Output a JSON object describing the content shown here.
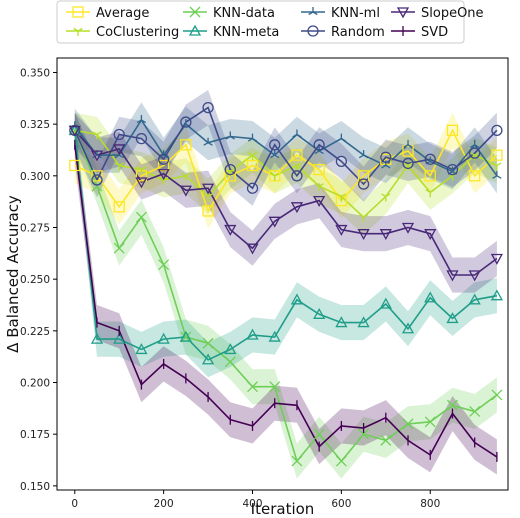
{
  "chart_data": {
    "type": "line",
    "xlabel": "Iteration",
    "ylabel": "Δ Balanced Accuracy",
    "xlim": [
      -40,
      975
    ],
    "ylim": [
      0.148,
      0.357
    ],
    "xticks": [
      0,
      200,
      400,
      600,
      800
    ],
    "xtick_labels": [
      "0",
      "200",
      "400",
      "600",
      "800"
    ],
    "yticks": [
      0.15,
      0.175,
      0.2,
      0.225,
      0.25,
      0.275,
      0.3,
      0.325,
      0.35
    ],
    "ytick_labels": [
      "0.150",
      "0.175",
      "0.200",
      "0.225",
      "0.250",
      "0.275",
      "0.300",
      "0.325",
      "0.350"
    ],
    "grid": false,
    "legend_position": "top",
    "x": [
      0,
      50,
      100,
      150,
      200,
      250,
      300,
      350,
      400,
      450,
      500,
      550,
      600,
      650,
      700,
      750,
      800,
      850,
      900,
      950
    ],
    "series": [
      {
        "name": "Average",
        "color": "#fde725",
        "marker": "square",
        "values": [
          0.305,
          0.3,
          0.285,
          0.3,
          0.305,
          0.315,
          0.283,
          0.3,
          0.305,
          0.3,
          0.31,
          0.303,
          0.288,
          0.3,
          0.308,
          0.312,
          0.3,
          0.322,
          0.3,
          0.31
        ]
      },
      {
        "name": "CoClustering",
        "color": "#b5de2b",
        "marker": "tri_down",
        "values": [
          0.322,
          0.32,
          0.305,
          0.303,
          0.298,
          0.3,
          0.29,
          0.302,
          0.31,
          0.3,
          0.305,
          0.295,
          0.29,
          0.28,
          0.29,
          0.305,
          0.292,
          0.3,
          0.31,
          0.305
        ]
      },
      {
        "name": "KNN-data",
        "color": "#6ece58",
        "marker": "x",
        "values": [
          0.322,
          0.295,
          0.265,
          0.28,
          0.257,
          0.222,
          0.219,
          0.21,
          0.198,
          0.198,
          0.162,
          0.175,
          0.162,
          0.175,
          0.172,
          0.18,
          0.181,
          0.189,
          0.186,
          0.194
        ]
      },
      {
        "name": "KNN-meta",
        "color": "#1f9e89",
        "marker": "tri_up",
        "values": [
          0.322,
          0.221,
          0.221,
          0.216,
          0.221,
          0.222,
          0.211,
          0.216,
          0.223,
          0.222,
          0.24,
          0.233,
          0.229,
          0.229,
          0.238,
          0.226,
          0.241,
          0.231,
          0.24,
          0.242
        ]
      },
      {
        "name": "KNN-ml",
        "color": "#31688e",
        "marker": "tri",
        "values": [
          0.324,
          0.31,
          0.31,
          0.327,
          0.31,
          0.325,
          0.316,
          0.319,
          0.318,
          0.31,
          0.32,
          0.312,
          0.318,
          0.31,
          0.305,
          0.315,
          0.307,
          0.302,
          0.315,
          0.3
        ]
      },
      {
        "name": "Random",
        "color": "#3e4a89",
        "marker": "circle",
        "values": [
          0.322,
          0.298,
          0.32,
          0.318,
          0.308,
          0.326,
          0.333,
          0.303,
          0.294,
          0.315,
          0.3,
          0.315,
          0.307,
          0.296,
          0.309,
          0.306,
          0.308,
          0.303,
          0.311,
          0.322
        ]
      },
      {
        "name": "SlopeOne",
        "color": "#482878",
        "marker": "tri_down",
        "values": [
          0.322,
          0.31,
          0.313,
          0.297,
          0.301,
          0.293,
          0.294,
          0.274,
          0.265,
          0.278,
          0.285,
          0.288,
          0.274,
          0.272,
          0.272,
          0.275,
          0.272,
          0.252,
          0.252,
          0.26
        ]
      },
      {
        "name": "SVD",
        "color": "#440154",
        "marker": "plus",
        "values": [
          0.315,
          0.229,
          0.225,
          0.199,
          0.209,
          0.202,
          0.193,
          0.182,
          0.179,
          0.19,
          0.189,
          0.169,
          0.179,
          0.178,
          0.183,
          0.172,
          0.165,
          0.185,
          0.171,
          0.164
        ]
      }
    ]
  }
}
